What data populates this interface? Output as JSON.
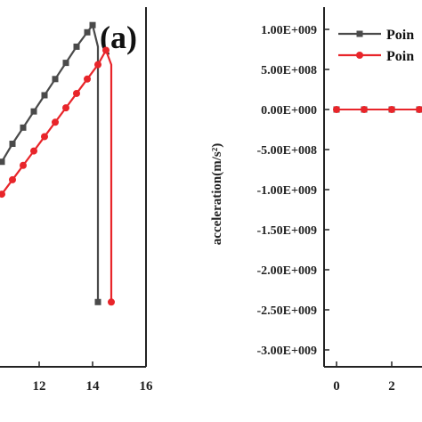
{
  "chart_data": [
    {
      "type": "line",
      "panel_label": "(a)",
      "xlabel": "",
      "ylabel": "",
      "x_ticks": [
        "12",
        "14",
        "16"
      ],
      "x_tick_values": [
        12,
        14,
        16
      ],
      "xlim": [
        10.5,
        16.5
      ],
      "ylim": [
        0,
        100
      ],
      "grid": false,
      "series": [
        {
          "name": "",
          "color": "#4a4a4a",
          "marker": "square",
          "points": [
            [
              10.6,
              57
            ],
            [
              11.0,
              62
            ],
            [
              11.4,
              66.5
            ],
            [
              11.8,
              71
            ],
            [
              12.2,
              75.5
            ],
            [
              12.6,
              80
            ],
            [
              13.0,
              84.5
            ],
            [
              13.4,
              89
            ],
            [
              13.8,
              93
            ],
            [
              14.0,
              95
            ],
            [
              14.2,
              89
            ],
            [
              14.2,
              18
            ]
          ]
        },
        {
          "name": "",
          "color": "#e8252a",
          "marker": "circle",
          "points": [
            [
              10.6,
              48
            ],
            [
              11.0,
              52
            ],
            [
              11.4,
              56
            ],
            [
              11.8,
              60
            ],
            [
              12.2,
              64
            ],
            [
              12.6,
              68
            ],
            [
              13.0,
              72
            ],
            [
              13.4,
              76
            ],
            [
              13.8,
              80
            ],
            [
              14.2,
              84
            ],
            [
              14.5,
              88
            ],
            [
              14.7,
              84
            ],
            [
              14.7,
              18
            ]
          ]
        }
      ]
    },
    {
      "type": "line",
      "xlabel": "",
      "ylabel": "acceleration(m/s²)",
      "y_ticks": [
        "1.00E+009",
        "5.00E+008",
        "0.00E+000",
        "-5.00E+008",
        "-1.00E+009",
        "-1.50E+009",
        "-2.00E+009",
        "-2.50E+009",
        "-3.00E+009"
      ],
      "y_tick_values": [
        1000000000,
        500000000,
        0,
        -500000000,
        -1000000000,
        -1500000000,
        -2000000000,
        -2500000000,
        -3000000000
      ],
      "x_ticks": [
        "0",
        "2"
      ],
      "x_tick_values": [
        0,
        2
      ],
      "ylim": [
        -3200000000,
        1200000000
      ],
      "xlim": [
        -0.2,
        4.2
      ],
      "grid": false,
      "legend": {
        "position": "top-right",
        "entries": [
          "Poin",
          "Poin"
        ]
      },
      "series": [
        {
          "name": "Poin",
          "color": "#4a4a4a",
          "marker": "square",
          "points": [
            [
              0,
              0
            ],
            [
              1,
              0
            ],
            [
              2,
              0
            ],
            [
              3,
              0
            ]
          ]
        },
        {
          "name": "Poin",
          "color": "#e8252a",
          "marker": "circle",
          "points": [
            [
              0,
              0
            ],
            [
              1,
              0
            ],
            [
              2,
              0
            ],
            [
              3,
              0
            ]
          ]
        }
      ]
    }
  ]
}
